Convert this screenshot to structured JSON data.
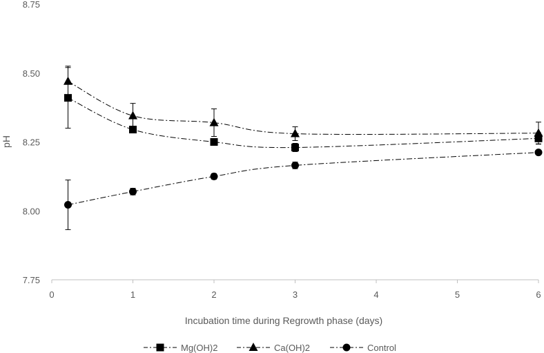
{
  "chart_data": {
    "type": "line",
    "title": "",
    "xlabel": "Incubation time during Regrowth phase (days)",
    "ylabel": "pH",
    "xlim": [
      0,
      6
    ],
    "ylim": [
      7.75,
      8.75
    ],
    "x_ticks": [
      0,
      1,
      2,
      3,
      4,
      5,
      6
    ],
    "x_tick_labels": [
      "0",
      "1",
      "2",
      "3",
      "4",
      "5",
      "6"
    ],
    "y_ticks": [
      7.75,
      8.0,
      8.25,
      8.5,
      8.75
    ],
    "y_tick_labels": [
      "7.75",
      "8.00",
      "8.25",
      "8.50",
      "8.75"
    ],
    "grid": false,
    "legend_position": "bottom",
    "series": [
      {
        "name": "Mg(OH)2",
        "marker": "square",
        "x": [
          0.2,
          1,
          2,
          3,
          6
        ],
        "y": [
          8.41,
          8.295,
          8.25,
          8.23,
          8.263
        ],
        "err": [
          0.11,
          0,
          0,
          0.015,
          0.02
        ]
      },
      {
        "name": "Ca(OH)2",
        "marker": "triangle",
        "x": [
          0.2,
          1,
          2,
          3,
          6
        ],
        "y": [
          8.47,
          8.345,
          8.32,
          8.28,
          8.282
        ],
        "err": [
          0.055,
          0.045,
          0.05,
          0.025,
          0.04
        ]
      },
      {
        "name": "Control",
        "marker": "circle",
        "x": [
          0.2,
          1,
          2,
          3,
          6
        ],
        "y": [
          8.022,
          8.07,
          8.125,
          8.165,
          8.212
        ],
        "err": [
          0.09,
          0.012,
          0.01,
          0.012,
          0
        ]
      }
    ]
  }
}
